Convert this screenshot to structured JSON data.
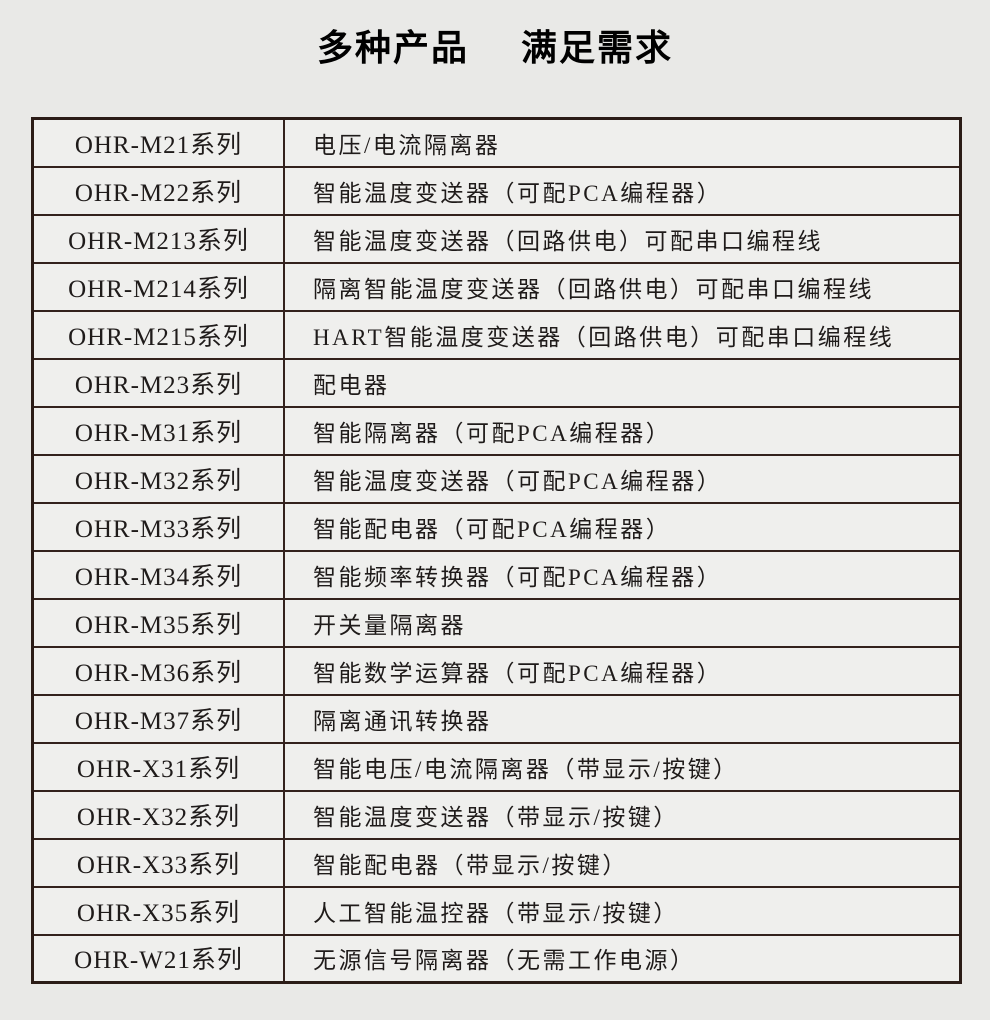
{
  "title": {
    "left": "多种产品",
    "right": "满足需求"
  },
  "colors": {
    "page_background": "#e9e9e7",
    "cell_background": "#efefed",
    "outer_border": "#2b1c17",
    "inner_border": "#33221d",
    "text": "#1f1b1a",
    "title_text": "#000000"
  },
  "table": {
    "columns": [
      "series",
      "description"
    ],
    "rows": [
      {
        "series": "OHR-M21系列",
        "desc": "电压/电流隔离器"
      },
      {
        "series": "OHR-M22系列",
        "desc": "智能温度变送器（可配PCA编程器）"
      },
      {
        "series": "OHR-M213系列",
        "desc": "智能温度变送器（回路供电）可配串口编程线"
      },
      {
        "series": "OHR-M214系列",
        "desc": "隔离智能温度变送器（回路供电）可配串口编程线"
      },
      {
        "series": "OHR-M215系列",
        "desc": "HART智能温度变送器（回路供电）可配串口编程线"
      },
      {
        "series": "OHR-M23系列",
        "desc": "配电器"
      },
      {
        "series": "OHR-M31系列",
        "desc": "智能隔离器（可配PCA编程器）"
      },
      {
        "series": "OHR-M32系列",
        "desc": "智能温度变送器（可配PCA编程器）"
      },
      {
        "series": "OHR-M33系列",
        "desc": "智能配电器（可配PCA编程器）"
      },
      {
        "series": "OHR-M34系列",
        "desc": "智能频率转换器（可配PCA编程器）"
      },
      {
        "series": "OHR-M35系列",
        "desc": "开关量隔离器"
      },
      {
        "series": "OHR-M36系列",
        "desc": "智能数学运算器（可配PCA编程器）"
      },
      {
        "series": "OHR-M37系列",
        "desc": "隔离通讯转换器"
      },
      {
        "series": "OHR-X31系列",
        "desc": "智能电压/电流隔离器（带显示/按键）"
      },
      {
        "series": "OHR-X32系列",
        "desc": "智能温度变送器（带显示/按键）"
      },
      {
        "series": "OHR-X33系列",
        "desc": "智能配电器（带显示/按键）"
      },
      {
        "series": "OHR-X35系列",
        "desc": "人工智能温控器（带显示/按键）"
      },
      {
        "series": "OHR-W21系列",
        "desc": "无源信号隔离器（无需工作电源）"
      }
    ]
  }
}
